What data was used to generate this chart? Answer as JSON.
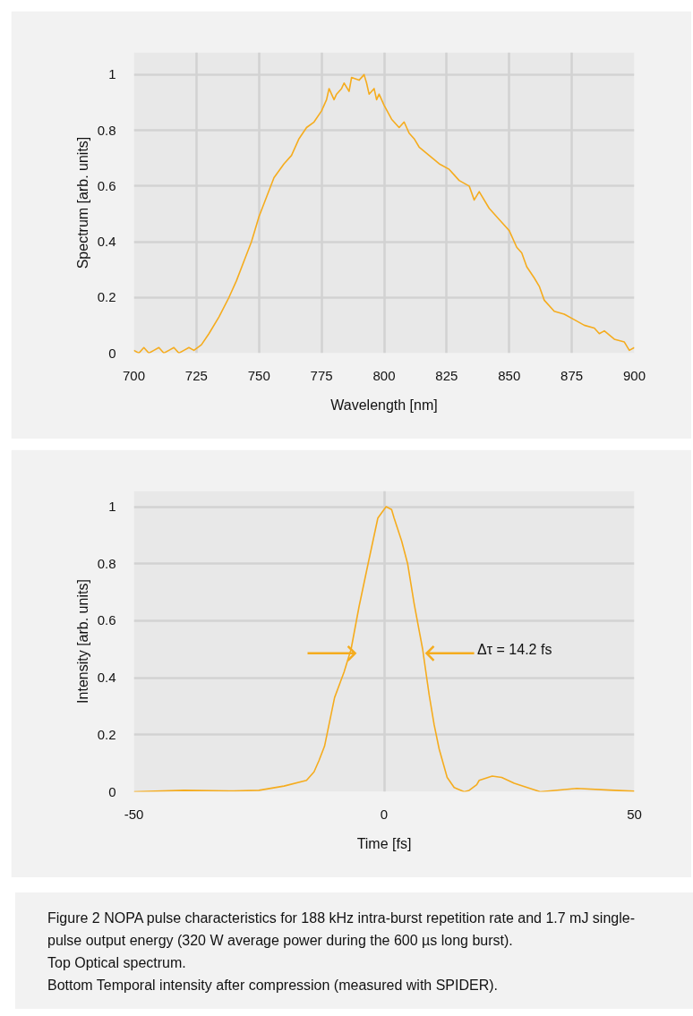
{
  "chart_data": [
    {
      "type": "line",
      "xlabel": "Wavelength [nm]",
      "ylabel": "Spectrum [arb. units]",
      "x": [
        700,
        702,
        704,
        706,
        708,
        710,
        712,
        714,
        716,
        718,
        720,
        722,
        724,
        727,
        730,
        734,
        738,
        741,
        744,
        747,
        750,
        753,
        756,
        760,
        763,
        766,
        769,
        772,
        775,
        777,
        778,
        780,
        781,
        783,
        784,
        786,
        787,
        790,
        792,
        793,
        794,
        796,
        797,
        798,
        800,
        803,
        806,
        808,
        810,
        812,
        814,
        818,
        822,
        826,
        828,
        830,
        834,
        836,
        838,
        842,
        846,
        850,
        853,
        855,
        857,
        860,
        862,
        864,
        868,
        872,
        876,
        880,
        884,
        886,
        888,
        892,
        896,
        898,
        900
      ],
      "series": [
        {
          "color": "#f5ac1e",
          "values": [
            0.01,
            0.0,
            0.02,
            0.0,
            0.01,
            0.02,
            0.0,
            0.01,
            0.02,
            0.0,
            0.01,
            0.02,
            0.01,
            0.03,
            0.07,
            0.13,
            0.2,
            0.26,
            0.33,
            0.4,
            0.49,
            0.56,
            0.63,
            0.68,
            0.71,
            0.77,
            0.81,
            0.83,
            0.87,
            0.91,
            0.95,
            0.91,
            0.93,
            0.95,
            0.97,
            0.94,
            0.99,
            0.98,
            1.0,
            0.97,
            0.93,
            0.95,
            0.91,
            0.93,
            0.89,
            0.84,
            0.81,
            0.83,
            0.79,
            0.77,
            0.74,
            0.71,
            0.68,
            0.66,
            0.64,
            0.62,
            0.6,
            0.55,
            0.58,
            0.52,
            0.48,
            0.44,
            0.38,
            0.36,
            0.31,
            0.27,
            0.24,
            0.19,
            0.15,
            0.14,
            0.12,
            0.1,
            0.09,
            0.07,
            0.08,
            0.05,
            0.04,
            0.01,
            0.02
          ]
        }
      ],
      "xlim": [
        700,
        900
      ],
      "xticks": [
        700,
        725,
        750,
        775,
        800,
        825,
        850,
        875,
        900
      ],
      "ylim": [
        0,
        1.08
      ],
      "yticks": [
        0,
        0.2,
        0.4,
        0.6,
        0.8,
        1
      ],
      "grid": true
    },
    {
      "type": "line",
      "xlabel": "Time [fs]",
      "ylabel": "Intensity [arb. units]",
      "x": [
        -50,
        -40,
        -30,
        -25,
        -20,
        -15.5,
        -14,
        -13,
        -11.9,
        -9.9,
        -8,
        -6.6,
        -5,
        -3.2,
        -1.25,
        0.4,
        1.5,
        2,
        3.5,
        4.7,
        6,
        7.7,
        9,
        10,
        11,
        12.6,
        14,
        16,
        17,
        18.5,
        19,
        21.6,
        23.5,
        26,
        31.2,
        38.5,
        45,
        50
      ],
      "series": [
        {
          "color": "#f5ac1e",
          "values": [
            0.0,
            0.005,
            0.003,
            0.005,
            0.02,
            0.04,
            0.07,
            0.11,
            0.16,
            0.33,
            0.42,
            0.5,
            0.65,
            0.8,
            0.96,
            1.0,
            0.99,
            0.96,
            0.88,
            0.8,
            0.66,
            0.5,
            0.34,
            0.235,
            0.15,
            0.05,
            0.015,
            0.0,
            0.005,
            0.025,
            0.04,
            0.055,
            0.05,
            0.03,
            0.0,
            0.012,
            0.006,
            0.002
          ]
        }
      ],
      "xlim": [
        -50,
        50
      ],
      "xticks": [
        -50,
        0,
        50
      ],
      "ylim": [
        0,
        1.055
      ],
      "yticks": [
        0,
        0.2,
        0.4,
        0.6,
        0.8,
        1
      ],
      "grid": true,
      "annotations": [
        "Δτ = 14.2 fs",
        "Figure 2 NOPA pulse characteristics for 188 kHz intra-burst repetition rate and 1.7 mJ single-pulse output energy (320 W average power during the 600 µs long burst).",
        "Top Optical spectrum.",
        "Bottom Temporal intensity after compression (measured with SPIDER)."
      ]
    }
  ]
}
